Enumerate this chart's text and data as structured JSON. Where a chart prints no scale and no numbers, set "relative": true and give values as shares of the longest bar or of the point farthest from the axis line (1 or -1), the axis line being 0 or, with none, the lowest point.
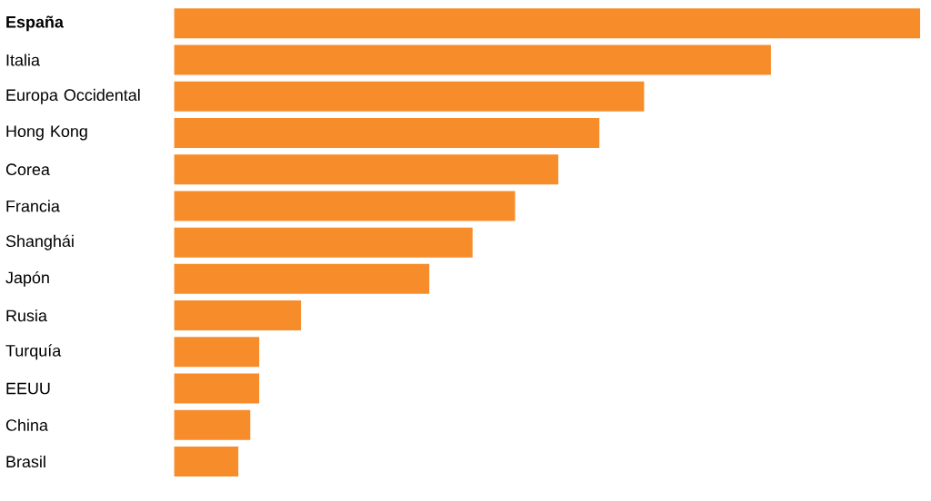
{
  "chart_data": {
    "type": "bar",
    "orientation": "horizontal",
    "relative": true,
    "color": "#f68d2a",
    "categories": [
      "**España**",
      "Italia",
      "Europa Occidental",
      "Hong Kong",
      "Corea",
      "Francia",
      "Shanghái",
      "Japón",
      "Rusia",
      "Turquía",
      "EEUU",
      "China",
      "Brasil"
    ],
    "values": [
      1,
      0.8,
      0.63,
      0.57,
      0.515,
      0.457,
      0.4,
      0.342,
      0.17,
      0.114,
      0.114,
      0.102,
      0.086
    ]
  }
}
